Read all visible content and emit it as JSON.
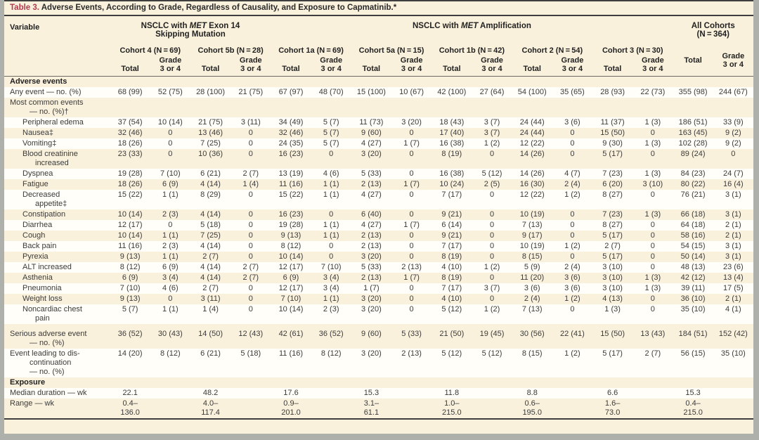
{
  "colors": {
    "title_accent": "#b23a4e",
    "panel_cream": "#faf1dc",
    "stripe_white": "#fffef8",
    "rule_dark": "#3e3e3e"
  },
  "title": {
    "prefix": "Table 3.",
    "text": " Adverse Events, According to Grade, Regardless of Causality, and Exposure to Capmatinib.*"
  },
  "header": {
    "variable_label": "Variable",
    "groups": [
      {
        "pre": "NSCLC with ",
        "italic": "MET",
        "post": " Exon 14\nSkipping Mutation"
      },
      {
        "pre": "NSCLC with ",
        "italic": "MET",
        "post": " Amplification"
      },
      {
        "label": "All Cohorts\n(N = 364)"
      }
    ],
    "cohorts": [
      "Cohort 4 (N = 69)",
      "Cohort 5b (N = 28)",
      "Cohort 1a (N = 69)",
      "Cohort 5a (N = 15)",
      "Cohort 1b (N = 42)",
      "Cohort 2 (N = 54)",
      "Cohort 3 (N = 30)"
    ],
    "total_label": "Total",
    "grade_label": "Grade\n3 or 4"
  },
  "rows": [
    {
      "label": "Adverse events",
      "section": true,
      "cells": []
    },
    {
      "label": "Any event — no. (%)",
      "cells": [
        "68 (99)",
        "52 (75)",
        "28 (100)",
        "21 (75)",
        "67 (97)",
        "48 (70)",
        "15 (100)",
        "10 (67)",
        "42 (100)",
        "27 (64)",
        "54 (100)",
        "35 (65)",
        "28 (93)",
        "22 (73)",
        "355 (98)",
        "244 (67)"
      ]
    },
    {
      "label": "Most common events\n— no. (%)†",
      "cells": []
    },
    {
      "label": "Peripheral edema",
      "indent": true,
      "cells": [
        "37 (54)",
        "10 (14)",
        "21 (75)",
        "3 (11)",
        "34 (49)",
        "5 (7)",
        "11 (73)",
        "3 (20)",
        "18 (43)",
        "3 (7)",
        "24 (44)",
        "3 (6)",
        "11 (37)",
        "1 (3)",
        "186 (51)",
        "33 (9)"
      ]
    },
    {
      "label": "Nausea‡",
      "indent": true,
      "cells": [
        "32 (46)",
        "0",
        "13 (46)",
        "0",
        "32 (46)",
        "5 (7)",
        "9 (60)",
        "0",
        "17 (40)",
        "3 (7)",
        "24 (44)",
        "0",
        "15 (50)",
        "0",
        "163 (45)",
        "9 (2)"
      ]
    },
    {
      "label": "Vomiting‡",
      "indent": true,
      "cells": [
        "18 (26)",
        "0",
        "7 (25)",
        "0",
        "24 (35)",
        "5 (7)",
        "4 (27)",
        "1 (7)",
        "16 (38)",
        "1 (2)",
        "12 (22)",
        "0",
        "9 (30)",
        "1 (3)",
        "102 (28)",
        "9 (2)"
      ]
    },
    {
      "label": "Blood creatinine\nincreased",
      "indent": true,
      "cells": [
        "23 (33)",
        "0",
        "10 (36)",
        "0",
        "16 (23)",
        "0",
        "3 (20)",
        "0",
        "8 (19)",
        "0",
        "14 (26)",
        "0",
        "5 (17)",
        "0",
        "89 (24)",
        "0"
      ]
    },
    {
      "label": "Dyspnea",
      "indent": true,
      "cells": [
        "19 (28)",
        "7 (10)",
        "6 (21)",
        "2 (7)",
        "13 (19)",
        "4 (6)",
        "5 (33)",
        "0",
        "16 (38)",
        "5 (12)",
        "14 (26)",
        "4 (7)",
        "7 (23)",
        "1 (3)",
        "84 (23)",
        "24 (7)"
      ]
    },
    {
      "label": "Fatigue",
      "indent": true,
      "cells": [
        "18 (26)",
        "6 (9)",
        "4 (14)",
        "1 (4)",
        "11 (16)",
        "1 (1)",
        "2 (13)",
        "1 (7)",
        "10 (24)",
        "2 (5)",
        "16 (30)",
        "2 (4)",
        "6 (20)",
        "3 (10)",
        "80 (22)",
        "16 (4)"
      ]
    },
    {
      "label": "Decreased\nappetite‡",
      "indent": true,
      "cells": [
        "15 (22)",
        "1 (1)",
        "8 (29)",
        "0",
        "15 (22)",
        "1 (1)",
        "4 (27)",
        "0",
        "7 (17)",
        "0",
        "12 (22)",
        "1 (2)",
        "8 (27)",
        "0",
        "76 (21)",
        "3 (1)"
      ]
    },
    {
      "label": "Constipation",
      "indent": true,
      "cells": [
        "10 (14)",
        "2 (3)",
        "4 (14)",
        "0",
        "16 (23)",
        "0",
        "6 (40)",
        "0",
        "9 (21)",
        "0",
        "10 (19)",
        "0",
        "7 (23)",
        "1 (3)",
        "66 (18)",
        "3 (1)"
      ]
    },
    {
      "label": "Diarrhea",
      "indent": true,
      "cells": [
        "12 (17)",
        "0",
        "5 (18)",
        "0",
        "19 (28)",
        "1 (1)",
        "4 (27)",
        "1 (7)",
        "6 (14)",
        "0",
        "7 (13)",
        "0",
        "8 (27)",
        "0",
        "64 (18)",
        "2 (1)"
      ]
    },
    {
      "label": "Cough",
      "indent": true,
      "cells": [
        "10 (14)",
        "1 (1)",
        "7 (25)",
        "0",
        "9 (13)",
        "1 (1)",
        "2 (13)",
        "0",
        "9 (21)",
        "0",
        "9 (17)",
        "0",
        "5 (17)",
        "0",
        "58 (16)",
        "2 (1)"
      ]
    },
    {
      "label": "Back pain",
      "indent": true,
      "cells": [
        "11 (16)",
        "2 (3)",
        "4 (14)",
        "0",
        "8 (12)",
        "0",
        "2 (13)",
        "0",
        "7 (17)",
        "0",
        "10 (19)",
        "1 (2)",
        "2 (7)",
        "0",
        "54 (15)",
        "3 (1)"
      ]
    },
    {
      "label": "Pyrexia",
      "indent": true,
      "cells": [
        "9 (13)",
        "1 (1)",
        "2 (7)",
        "0",
        "10 (14)",
        "0",
        "3 (20)",
        "0",
        "8 (19)",
        "0",
        "8 (15)",
        "0",
        "5 (17)",
        "0",
        "50 (14)",
        "3 (1)"
      ]
    },
    {
      "label": "ALT increased",
      "indent": true,
      "cells": [
        "8 (12)",
        "6 (9)",
        "4 (14)",
        "2 (7)",
        "12 (17)",
        "7 (10)",
        "5 (33)",
        "2 (13)",
        "4 (10)",
        "1 (2)",
        "5 (9)",
        "2 (4)",
        "3 (10)",
        "0",
        "48 (13)",
        "23 (6)"
      ]
    },
    {
      "label": "Asthenia",
      "indent": true,
      "cells": [
        "6 (9)",
        "3 (4)",
        "4 (14)",
        "2 (7)",
        "6 (9)",
        "3 (4)",
        "2 (13)",
        "1 (7)",
        "8 (19)",
        "0",
        "11 (20)",
        "3 (6)",
        "3 (10)",
        "1 (3)",
        "42 (12)",
        "13 (4)"
      ]
    },
    {
      "label": "Pneumonia",
      "indent": true,
      "cells": [
        "7 (10)",
        "4 (6)",
        "2 (7)",
        "0",
        "12 (17)",
        "3 (4)",
        "1 (7)",
        "0",
        "7 (17)",
        "3 (7)",
        "3 (6)",
        "3 (6)",
        "3 (10)",
        "1 (3)",
        "39 (11)",
        "17 (5)"
      ]
    },
    {
      "label": "Weight loss",
      "indent": true,
      "cells": [
        "9 (13)",
        "0",
        "3 (11)",
        "0",
        "7 (10)",
        "1 (1)",
        "3 (20)",
        "0",
        "4 (10)",
        "0",
        "2 (4)",
        "1 (2)",
        "4 (13)",
        "0",
        "36 (10)",
        "2 (1)"
      ]
    },
    {
      "label": "Noncardiac chest\npain",
      "indent": true,
      "cells": [
        "5 (7)",
        "1 (1)",
        "1 (4)",
        "0",
        "10 (14)",
        "2 (3)",
        "3 (20)",
        "0",
        "5 (12)",
        "1 (2)",
        "7 (13)",
        "0",
        "1 (3)",
        "0",
        "35 (10)",
        "4 (1)"
      ]
    },
    {
      "label": "Serious adverse event\n— no. (%)",
      "gap": true,
      "cells": [
        "36 (52)",
        "30 (43)",
        "14 (50)",
        "12 (43)",
        "42 (61)",
        "36 (52)",
        "9 (60)",
        "5 (33)",
        "21 (50)",
        "19 (45)",
        "30 (56)",
        "22 (41)",
        "15 (50)",
        "13 (43)",
        "184 (51)",
        "152 (42)"
      ]
    },
    {
      "label": "Event leading to dis-\ncontinuation\n— no. (%)",
      "cells": [
        "14 (20)",
        "8 (12)",
        "6 (21)",
        "5 (18)",
        "11 (16)",
        "8 (12)",
        "3 (20)",
        "2 (13)",
        "5 (12)",
        "5 (12)",
        "8 (15)",
        "1 (2)",
        "5 (17)",
        "2 (7)",
        "56 (15)",
        "35 (10)"
      ]
    },
    {
      "label": "Exposure",
      "section": true,
      "cells": []
    },
    {
      "label": "Median duration — wk",
      "cells": [
        "22.1",
        "",
        "48.2",
        "",
        "17.6",
        "",
        "15.3",
        "",
        "11.8",
        "",
        "8.8",
        "",
        "6.6",
        "",
        "15.3",
        ""
      ]
    },
    {
      "label": "Range — wk",
      "cells": [
        "0.4–\n136.0",
        "",
        "4.0–\n117.4",
        "",
        "0.9–\n201.0",
        "",
        "3.1–\n61.1",
        "",
        "1.0–\n215.0",
        "",
        "0.6–\n195.0",
        "",
        "1.6–\n73.0",
        "",
        "0.4–\n215.0",
        ""
      ]
    }
  ]
}
